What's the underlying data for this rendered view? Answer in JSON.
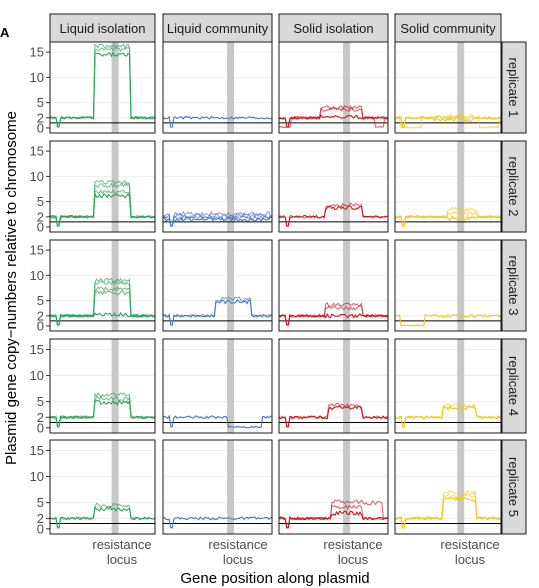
{
  "panel_label": "A",
  "chart_data": {
    "type": "line",
    "xlabel": "Gene position along plasmid",
    "ylabel": "Plasmid gene copy−numbers relative to chromosome",
    "x_tick_label_line1": "resistance",
    "x_tick_label_line2": "locus",
    "x_range": [
      0,
      1
    ],
    "ylim": [
      -1,
      17
    ],
    "y_ticks": [
      0,
      2,
      5,
      10,
      15
    ],
    "baseline_y": 1,
    "resistance_locus_x": 0.62,
    "columns": [
      {
        "name": "Liquid isolation",
        "color": "#2ca25f"
      },
      {
        "name": "Liquid community",
        "color": "#4a78c2"
      },
      {
        "name": "Solid isolation",
        "color": "#c8181e"
      },
      {
        "name": "Solid community",
        "color": "#f2c61f"
      }
    ],
    "rows": [
      "replicate 1",
      "replicate 2",
      "replicate 3",
      "replicate 4",
      "replicate 5"
    ],
    "panels": [
      {
        "row": 0,
        "col": 0,
        "baseline": 2,
        "segment": [
          0.42,
          0.76
        ],
        "levels": [
          14.5,
          15.5,
          16.2
        ]
      },
      {
        "row": 0,
        "col": 1,
        "baseline": 2,
        "segment": null,
        "levels": []
      },
      {
        "row": 0,
        "col": 2,
        "baseline": 2,
        "segment": [
          0.38,
          0.76
        ],
        "levels": [
          2.1,
          3.6,
          4.0
        ],
        "dips": [
          [
            0.0,
            0.1,
            0.0
          ],
          [
            0.88,
            0.96,
            0.0
          ]
        ]
      },
      {
        "row": 0,
        "col": 3,
        "baseline": 2,
        "segment": [
          0.35,
          0.76
        ],
        "levels": [
          1.7,
          2.0,
          2.3
        ],
        "dips": [
          [
            0.05,
            0.25,
            0.0
          ],
          [
            0.8,
            0.98,
            0.0
          ]
        ]
      },
      {
        "row": 1,
        "col": 0,
        "baseline": 2,
        "segment": [
          0.42,
          0.76
        ],
        "levels": [
          6.2,
          7.0,
          8.2,
          8.8
        ]
      },
      {
        "row": 1,
        "col": 1,
        "baseline": 2,
        "segment": [
          0.02,
          0.98
        ],
        "levels": [
          1.5,
          1.8,
          2.2,
          2.6
        ]
      },
      {
        "row": 1,
        "col": 2,
        "baseline": 2,
        "segment": [
          0.42,
          0.76
        ],
        "levels": [
          3.8,
          4.3
        ]
      },
      {
        "row": 1,
        "col": 3,
        "baseline": 2,
        "segment": [
          0.5,
          0.78
        ],
        "levels": [
          1.7,
          2.6,
          3.5
        ]
      },
      {
        "row": 2,
        "col": 0,
        "baseline": 2,
        "segment": [
          0.42,
          0.76
        ],
        "levels": [
          2.2,
          6.5,
          7.3,
          8.5,
          9.0
        ]
      },
      {
        "row": 2,
        "col": 1,
        "baseline": 2,
        "segment": [
          0.48,
          0.8
        ],
        "levels": [
          4.8,
          5.3
        ]
      },
      {
        "row": 2,
        "col": 2,
        "baseline": 2,
        "segment": [
          0.42,
          0.76
        ],
        "levels": [
          2.0,
          3.6,
          4.2
        ]
      },
      {
        "row": 2,
        "col": 3,
        "baseline": 2,
        "segment": null,
        "levels": [],
        "dips": [
          [
            0.05,
            0.28,
            0.0
          ]
        ]
      },
      {
        "row": 3,
        "col": 0,
        "baseline": 2,
        "segment": [
          0.42,
          0.76
        ],
        "levels": [
          4.8,
          5.6,
          6.3
        ]
      },
      {
        "row": 3,
        "col": 1,
        "baseline": 2,
        "segment": null,
        "levels": [],
        "dips": [
          [
            0.6,
            0.9,
            0.0
          ]
        ]
      },
      {
        "row": 3,
        "col": 2,
        "baseline": 2,
        "segment": [
          0.45,
          0.76
        ],
        "levels": [
          3.8,
          4.3
        ]
      },
      {
        "row": 3,
        "col": 3,
        "baseline": 2,
        "segment": [
          0.45,
          0.76
        ],
        "levels": [
          3.8,
          4.3
        ]
      },
      {
        "row": 4,
        "col": 0,
        "baseline": 2,
        "segment": [
          0.42,
          0.76
        ],
        "levels": [
          3.8,
          4.5
        ]
      },
      {
        "row": 4,
        "col": 1,
        "baseline": 2,
        "segment": null,
        "levels": []
      },
      {
        "row": 4,
        "col": 2,
        "baseline": 2,
        "segment": [
          0.48,
          0.76
        ],
        "levels": [
          3.0,
          4.2,
          5.2
        ],
        "extra_rise": [
          0.76,
          0.95,
          5.0
        ]
      },
      {
        "row": 4,
        "col": 3,
        "baseline": 2,
        "segment": [
          0.45,
          0.76
        ],
        "levels": [
          5.6,
          6.2,
          6.9
        ]
      }
    ]
  }
}
